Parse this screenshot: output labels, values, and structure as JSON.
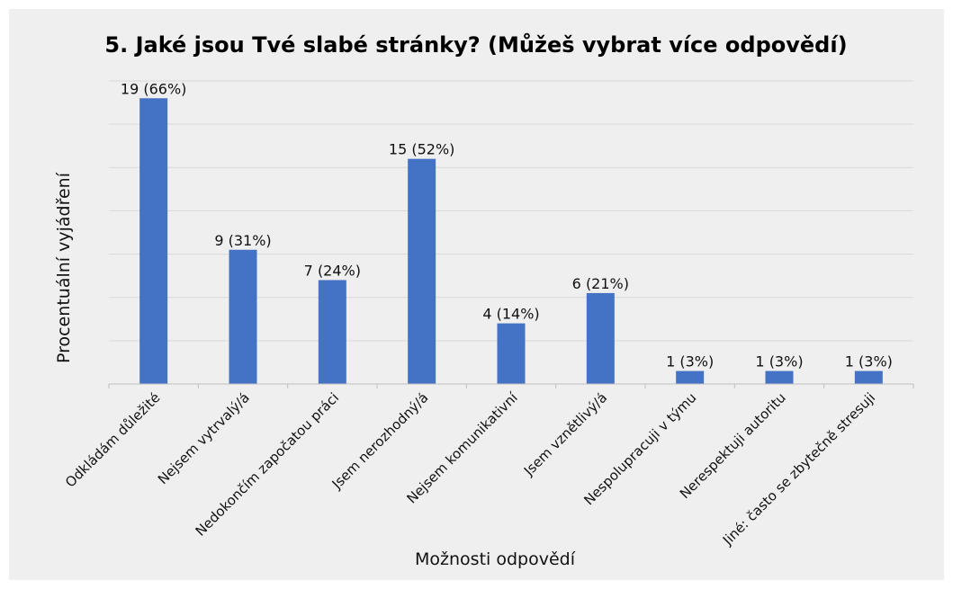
{
  "chart_data": {
    "type": "bar",
    "title": "5. Jaké jsou Tvé slabé stránky? (Můžeš vybrat více odpovědí)",
    "xlabel": "Možnosti odpovědí",
    "ylabel": "Procentuální vyjádření",
    "categories": [
      "Odkládám důležité",
      "Nejsem vytrvalý/á",
      "Nedokončím započatou práci",
      "Jsem nerozhodný/á",
      "Nejsem komunikativní",
      "Jsem vznětlivý/á",
      "Nespolupracuji v týmu",
      "Nerespektuji autoritu",
      "Jiné: často se zbytečně stresuji"
    ],
    "values": [
      66,
      31,
      24,
      52,
      14,
      21,
      3,
      3,
      3
    ],
    "data_labels": [
      "19 (66%)",
      "9 (31%)",
      "7 (24%)",
      "15 (52%)",
      "4 (14%)",
      "6 (21%)",
      "1 (3%)",
      "1 (3%)",
      "1 (3%)"
    ],
    "ylim": [
      0,
      70
    ],
    "grid": true,
    "colors": {
      "bar": "#4472c4",
      "background": "#efefef",
      "grid": "#d9d9d9",
      "axis": "#bfbfbf"
    }
  }
}
